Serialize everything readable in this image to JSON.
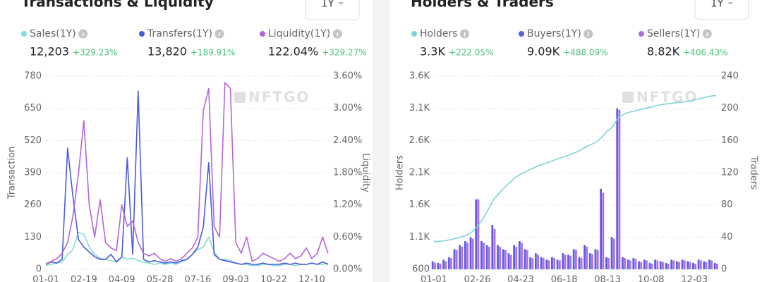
{
  "chart_data": [
    {
      "type": "line",
      "title": "Transactions & Liquidity",
      "range_selector": "1Y",
      "watermark": "NFTGO",
      "ylabel": "Transaction",
      "y2label": "Liquidity",
      "grid": true,
      "categories": [
        "01-01",
        null,
        null,
        null,
        null,
        null,
        null,
        "02-19",
        null,
        null,
        null,
        null,
        null,
        null,
        "04-09",
        null,
        null,
        null,
        null,
        null,
        null,
        "05-28",
        null,
        null,
        null,
        null,
        null,
        null,
        "07-16",
        null,
        null,
        null,
        null,
        null,
        null,
        "09-03",
        null,
        null,
        null,
        null,
        null,
        null,
        "10-22",
        null,
        null,
        null,
        null,
        null,
        null,
        "12-10",
        null,
        null,
        null
      ],
      "ylim": [
        0,
        780
      ],
      "yticks": [
        0,
        130,
        260,
        390,
        520,
        650,
        780
      ],
      "y2lim": [
        0,
        3.6
      ],
      "y2ticks": [
        {
          "value": 0,
          "label": "0.00%"
        },
        {
          "value": 0.6,
          "label": "0.60%"
        },
        {
          "value": 1.2,
          "label": "1.20%"
        },
        {
          "value": 1.8,
          "label": "1.80%"
        },
        {
          "value": 2.4,
          "label": "2.40%"
        },
        {
          "value": 3.0,
          "label": "3.00%"
        },
        {
          "value": 3.6,
          "label": "3.60%"
        }
      ],
      "series": [
        {
          "name": "Sales(1Y)",
          "type": "line",
          "color": "#86dcd6",
          "summary": "12,203",
          "change": "+329.23%",
          "values": [
            15,
            20,
            25,
            30,
            60,
            80,
            150,
            140,
            90,
            60,
            45,
            40,
            35,
            30,
            50,
            40,
            45,
            35,
            30,
            25,
            20,
            25,
            20,
            25,
            20,
            30,
            40,
            60,
            80,
            90,
            130,
            70,
            40,
            40,
            35,
            25,
            20,
            20,
            15,
            15,
            20,
            20,
            15,
            15,
            20,
            20,
            15,
            20,
            20,
            25,
            20,
            20,
            25
          ]
        },
        {
          "name": "Transfers(1Y)",
          "type": "line",
          "color": "#4a5bdc",
          "summary": "13,820",
          "change": "+189.91%",
          "values": [
            20,
            30,
            25,
            40,
            490,
            290,
            120,
            90,
            70,
            50,
            40,
            40,
            60,
            30,
            50,
            450,
            60,
            720,
            40,
            30,
            35,
            30,
            25,
            30,
            25,
            35,
            40,
            60,
            90,
            170,
            430,
            60,
            40,
            35,
            30,
            25,
            20,
            25,
            20,
            20,
            25,
            20,
            20,
            20,
            25,
            20,
            25,
            20,
            20,
            25,
            20,
            30,
            20
          ]
        },
        {
          "name": "Liquidity(1Y)",
          "type": "line",
          "axis": "y2",
          "color": "#b565d6",
          "summary": "122.04%",
          "change": "+329.27%",
          "values": [
            0.1,
            0.15,
            0.2,
            0.3,
            0.5,
            1.0,
            1.78,
            2.77,
            1.2,
            0.6,
            1.3,
            0.5,
            0.4,
            0.35,
            1.2,
            0.8,
            0.9,
            0.5,
            0.3,
            0.25,
            0.3,
            0.2,
            0.15,
            0.2,
            0.15,
            0.2,
            0.3,
            0.4,
            0.6,
            2.95,
            3.37,
            0.8,
            0.6,
            3.48,
            3.37,
            0.5,
            0.3,
            0.6,
            0.15,
            0.2,
            0.3,
            0.25,
            0.2,
            0.15,
            0.2,
            0.3,
            0.2,
            0.25,
            0.4,
            0.2,
            0.3,
            0.6,
            0.3
          ]
        }
      ]
    },
    {
      "type": "combo",
      "title": "Holders & Traders",
      "range_selector": "1Y",
      "watermark": "NFTGO",
      "ylabel": "Holders",
      "y2label": "Traders",
      "grid": true,
      "categories": [
        "01-01",
        null,
        null,
        null,
        null,
        null,
        null,
        null,
        "02-26",
        null,
        null,
        null,
        null,
        null,
        null,
        null,
        "04-23",
        null,
        null,
        null,
        null,
        null,
        null,
        null,
        "06-18",
        null,
        null,
        null,
        null,
        null,
        null,
        null,
        "08-13",
        null,
        null,
        null,
        null,
        null,
        null,
        null,
        "10-08",
        null,
        null,
        null,
        null,
        null,
        null,
        null,
        "12-03",
        null,
        null,
        null,
        null
      ],
      "ylim": [
        600,
        3600
      ],
      "yticks": [
        600,
        {
          "value": 1100,
          "label": "1.1K"
        },
        {
          "value": 1600,
          "label": "1.6K"
        },
        {
          "value": 2100,
          "label": "2.1K"
        },
        {
          "value": 2600,
          "label": "2.6K"
        },
        {
          "value": 3100,
          "label": "3.1K"
        },
        {
          "value": 3600,
          "label": "3.6K"
        }
      ],
      "y2lim": [
        0,
        240
      ],
      "y2ticks": [
        0,
        40,
        80,
        120,
        160,
        200,
        240
      ],
      "series": [
        {
          "name": "Holders",
          "type": "line",
          "color": "#7fd3d8",
          "summary": "3.3K",
          "change": "+222.05%",
          "values": [
            1030,
            1035,
            1045,
            1060,
            1080,
            1100,
            1130,
            1180,
            1260,
            1380,
            1530,
            1680,
            1780,
            1870,
            1950,
            2030,
            2080,
            2120,
            2160,
            2200,
            2230,
            2260,
            2290,
            2320,
            2350,
            2380,
            2410,
            2450,
            2500,
            2540,
            2580,
            2660,
            2750,
            2820,
            2960,
            3010,
            3040,
            3060,
            3080,
            3100,
            3120,
            3140,
            3160,
            3170,
            3180,
            3190,
            3200,
            3210,
            3230,
            3250,
            3270,
            3290,
            3300
          ]
        },
        {
          "name": "Buyers(1Y)",
          "type": "bar",
          "axis": "y2",
          "color": "#5a5ee0",
          "summary": "9.09K",
          "change": "+488.09%",
          "values": [
            10,
            8,
            12,
            15,
            25,
            30,
            35,
            40,
            87,
            35,
            30,
            55,
            30,
            25,
            20,
            30,
            35,
            25,
            15,
            20,
            15,
            12,
            15,
            12,
            20,
            18,
            25,
            15,
            30,
            20,
            25,
            100,
            15,
            40,
            200,
            15,
            12,
            14,
            10,
            12,
            8,
            12,
            10,
            8,
            12,
            10,
            12,
            10,
            8,
            12,
            10,
            12,
            8
          ]
        },
        {
          "name": "Sellers(1Y)",
          "type": "bar",
          "axis": "y2",
          "color": "#b06ee0",
          "summary": "8.82K",
          "change": "+406.43%",
          "values": [
            8,
            7,
            10,
            14,
            24,
            28,
            33,
            38,
            87,
            33,
            28,
            50,
            28,
            24,
            18,
            28,
            33,
            24,
            14,
            18,
            14,
            11,
            14,
            11,
            18,
            17,
            24,
            14,
            28,
            19,
            24,
            95,
            14,
            38,
            198,
            14,
            11,
            13,
            9,
            11,
            7,
            11,
            9,
            7,
            11,
            9,
            11,
            9,
            7,
            11,
            9,
            11,
            7
          ]
        }
      ]
    }
  ]
}
